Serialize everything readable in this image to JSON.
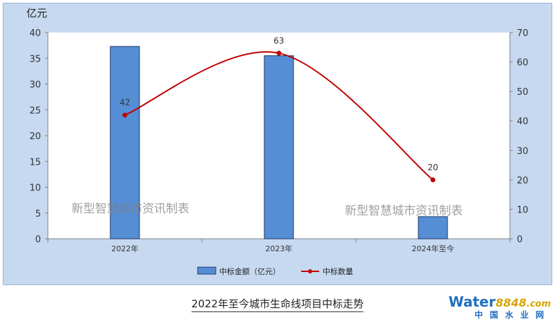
{
  "chart_data": {
    "type": "bar+line",
    "categories": [
      "2022年",
      "2023年",
      "2024年至今"
    ],
    "series": [
      {
        "name": "中标金额（亿元）",
        "type": "bar",
        "axis": "left",
        "values": [
          37.3,
          35.5,
          4.3
        ],
        "color": "#558ed5"
      },
      {
        "name": "中标数量",
        "type": "line",
        "axis": "right",
        "values": [
          42,
          63,
          20
        ],
        "color": "#c00000"
      }
    ],
    "data_labels": [
      "42",
      "63",
      "20"
    ],
    "y_left": {
      "unit_label": "亿元",
      "lim": [
        0,
        40
      ],
      "ticks": [
        "0",
        "5",
        "10",
        "15",
        "20",
        "25",
        "30",
        "35",
        "40"
      ]
    },
    "y_right": {
      "lim": [
        0,
        70
      ],
      "ticks": [
        "0",
        "10",
        "20",
        "30",
        "40",
        "50",
        "60",
        "70"
      ]
    },
    "legend_position": "bottom",
    "watermarks": [
      "新型智慧城市资讯制表",
      "新型智慧城市资讯制表"
    ]
  },
  "caption": "2022年至今城市生命线项目中标走势",
  "logo": {
    "word": "Water",
    "digits": "8848",
    "dot": ".com",
    "cn": "中国水业网"
  }
}
